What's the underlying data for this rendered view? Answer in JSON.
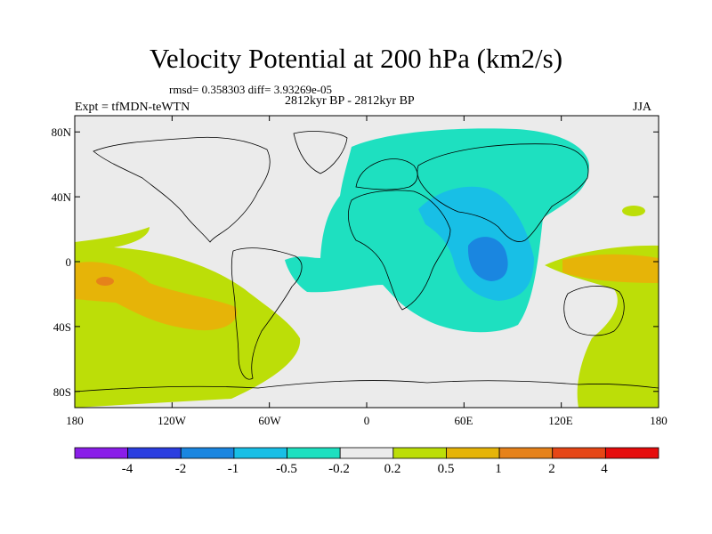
{
  "title": "Velocity Potential at 200 hPa (km2/s)",
  "stats": "rmsd= 0.358303 diff= 3.93269e-05",
  "experiment": "Expt = tfMDN-teWTN",
  "period": "2812kyr BP - 2812kyr BP",
  "season": "JJA",
  "lon_ticks": [
    "180",
    "120W",
    "60W",
    "0",
    "60E",
    "120E",
    "180"
  ],
  "lat_ticks": [
    "80N",
    "40N",
    "0",
    "40S",
    "80S"
  ],
  "colorbar": {
    "labels": [
      "-4",
      "-2",
      "-1",
      "-0.5",
      "-0.2",
      "0.2",
      "0.5",
      "1",
      "2",
      "4"
    ],
    "colors": [
      "#8a1ee8",
      "#2b3ee0",
      "#1a86e0",
      "#18bfe6",
      "#1ee0c0",
      "#ebebeb",
      "#bcde08",
      "#e6b408",
      "#e6821a",
      "#e64616",
      "#e60c0c"
    ]
  },
  "background_color": "#ebebeb"
}
